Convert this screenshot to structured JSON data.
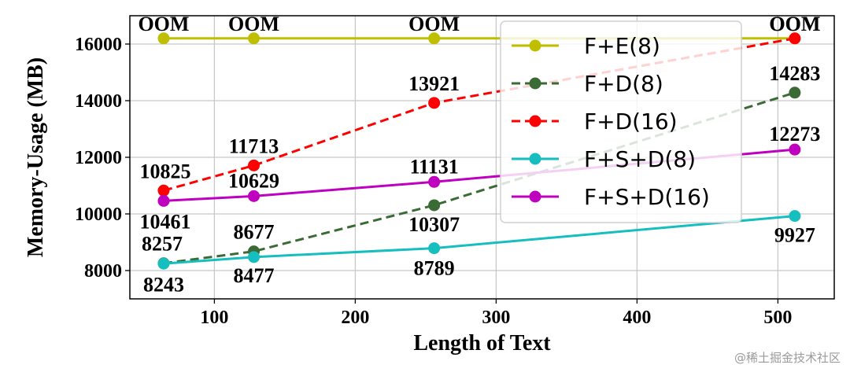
{
  "chart_data": {
    "type": "line",
    "title": "",
    "xlabel": "Length of Text",
    "ylabel": "Memory-Usage (MB)",
    "xlim": [
      40,
      540
    ],
    "ylim": [
      7000,
      17000
    ],
    "xticks": [
      100,
      200,
      300,
      400,
      500
    ],
    "yticks": [
      8000,
      10000,
      12000,
      14000,
      16000
    ],
    "grid": true,
    "legend_position": "top-right",
    "series": [
      {
        "name": "F+E(8)",
        "color": "#bfbf00",
        "dash": "solid",
        "x": [
          64,
          128,
          256,
          512
        ],
        "y": [
          16200,
          16200,
          16200,
          16200
        ],
        "labels": [
          "OOM",
          "OOM",
          "OOM",
          "OOM"
        ]
      },
      {
        "name": "F+D(8)",
        "color": "#3a6b35",
        "dash": "dashed",
        "x": [
          64,
          128,
          256,
          512
        ],
        "y": [
          8257,
          8677,
          10307,
          14283
        ],
        "labels": [
          "8257",
          "8677",
          "10307",
          "14283"
        ]
      },
      {
        "name": "F+D(16)",
        "color": "#ff0000",
        "dash": "dashed",
        "x": [
          64,
          128,
          256,
          512
        ],
        "y": [
          10825,
          11713,
          13921,
          16200
        ],
        "labels": [
          "10825",
          "11713",
          "13921",
          "OOM"
        ]
      },
      {
        "name": "F+S+D(8)",
        "color": "#17bebf",
        "dash": "solid",
        "x": [
          64,
          128,
          256,
          512
        ],
        "y": [
          8243,
          8477,
          8789,
          9927
        ],
        "labels": [
          "8243",
          "8477",
          "8789",
          "9927"
        ]
      },
      {
        "name": "F+S+D(16)",
        "color": "#bf00bf",
        "dash": "solid",
        "x": [
          64,
          128,
          256,
          512
        ],
        "y": [
          10461,
          10629,
          11131,
          12273
        ],
        "labels": [
          "10461",
          "10629",
          "11131",
          "12273"
        ]
      }
    ]
  },
  "watermark": "@稀土掘金技术社区"
}
